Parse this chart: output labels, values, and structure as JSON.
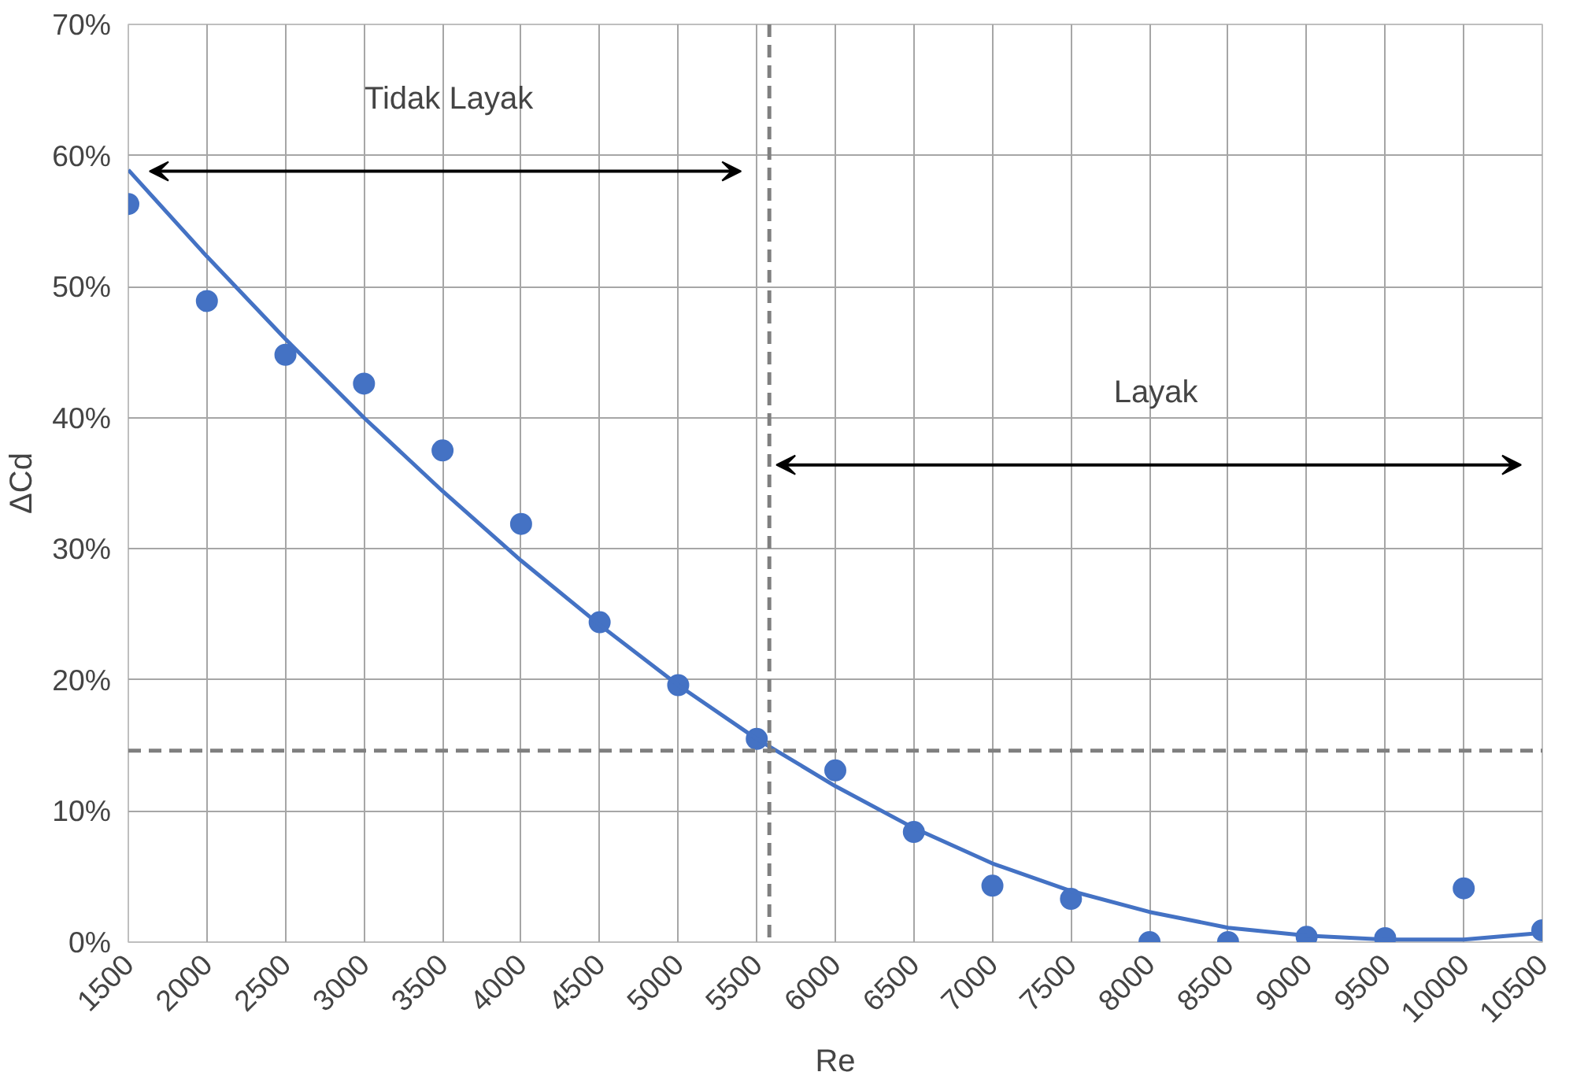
{
  "chart_data": {
    "type": "scatter",
    "xlabel": "Re",
    "ylabel": "ΔCd",
    "xlim": [
      1500,
      10500
    ],
    "xticks": [
      1500,
      2000,
      2500,
      3000,
      3500,
      4000,
      4500,
      5000,
      5500,
      6000,
      6500,
      7000,
      7500,
      8000,
      8500,
      9000,
      9500,
      10000,
      10500
    ],
    "ylim": [
      0,
      70
    ],
    "yticks": [
      {
        "value": 0,
        "label": "0%"
      },
      {
        "value": 10,
        "label": "10%"
      },
      {
        "value": 20,
        "label": "20%"
      },
      {
        "value": 30,
        "label": "30%"
      },
      {
        "value": 40,
        "label": "40%"
      },
      {
        "value": 50,
        "label": "50%"
      },
      {
        "value": 60,
        "label": "60%"
      },
      {
        "value": 70,
        "label": "70%"
      }
    ],
    "grid": true,
    "series": [
      {
        "marker": "circle",
        "color": "#4472c4",
        "x": [
          1500,
          2000,
          2500,
          3000,
          3500,
          4000,
          4500,
          5000,
          5500,
          6000,
          6500,
          7000,
          7500,
          8000,
          8500,
          9000,
          9500,
          10000,
          10500
        ],
        "values": [
          56.3,
          48.9,
          44.8,
          42.6,
          37.5,
          31.9,
          24.4,
          19.6,
          15.5,
          13.1,
          8.4,
          4.3,
          3.3,
          0,
          0,
          0.4,
          0.3,
          4.1,
          0.9
        ]
      },
      {
        "type": "line",
        "line_style": "solid",
        "color": "#4472c4",
        "x": [
          1500,
          2000,
          2500,
          3000,
          3500,
          4000,
          4500,
          5000,
          5500,
          6000,
          6500,
          7000,
          7500,
          8000,
          8500,
          9000,
          9500,
          10000,
          10500
        ],
        "values": [
          58.9,
          52.3,
          46.0,
          40.0,
          34.4,
          29.1,
          24.2,
          19.6,
          15.5,
          11.9,
          8.7,
          6.0,
          3.9,
          2.3,
          1.1,
          0.5,
          0.2,
          0.2,
          0.7
        ]
      }
    ],
    "ref_lines": [
      {
        "axis": "x",
        "value": 5580,
        "color": "#7f7f7f",
        "line_style": "dashed"
      },
      {
        "axis": "y",
        "value": 14.6,
        "color": "#7f7f7f",
        "line_style": "dashed"
      }
    ],
    "annotations": [
      "Tidak Layak",
      "Layak"
    ]
  }
}
